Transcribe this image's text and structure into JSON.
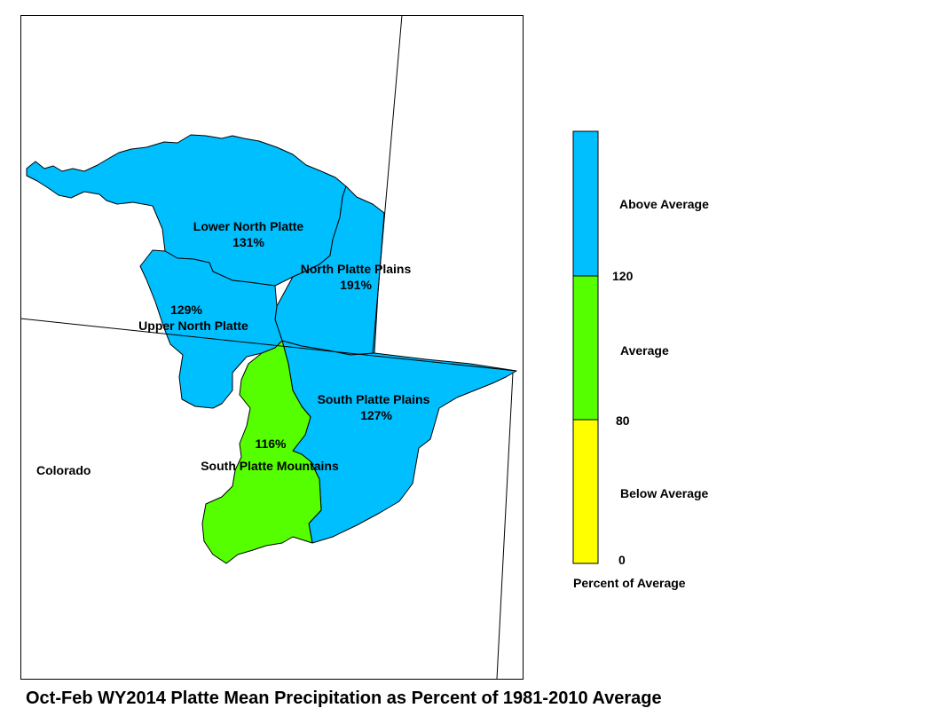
{
  "title": "Oct-Feb WY2014 Platte Mean Precipitation as Percent of 1981-2010 Average",
  "state_label": "Colorado",
  "colors": {
    "above": "#00BFFF",
    "average": "#55FF00",
    "below": "#FFFF00",
    "outline": "#000000"
  },
  "basins": [
    {
      "name": "Lower North Platte",
      "percent": "131%",
      "category": "above"
    },
    {
      "name": "North Platte Plains",
      "percent": "191%",
      "category": "above"
    },
    {
      "name": "Upper North Platte",
      "percent": "129%",
      "category": "above"
    },
    {
      "name": "South Platte Plains",
      "percent": "127%",
      "category": "above"
    },
    {
      "name": "South Platte Mountains",
      "percent": "116%",
      "category": "average"
    }
  ],
  "legend": {
    "caption": "Percent of Average",
    "classes": [
      {
        "label": "Above Average",
        "min": 120,
        "max": null,
        "color": "#00BFFF"
      },
      {
        "label": "Average",
        "min": 80,
        "max": 120,
        "color": "#55FF00"
      },
      {
        "label": "Below Average",
        "min": 0,
        "max": 80,
        "color": "#FFFF00"
      }
    ],
    "breaks": [
      "120",
      "80",
      "0"
    ]
  }
}
